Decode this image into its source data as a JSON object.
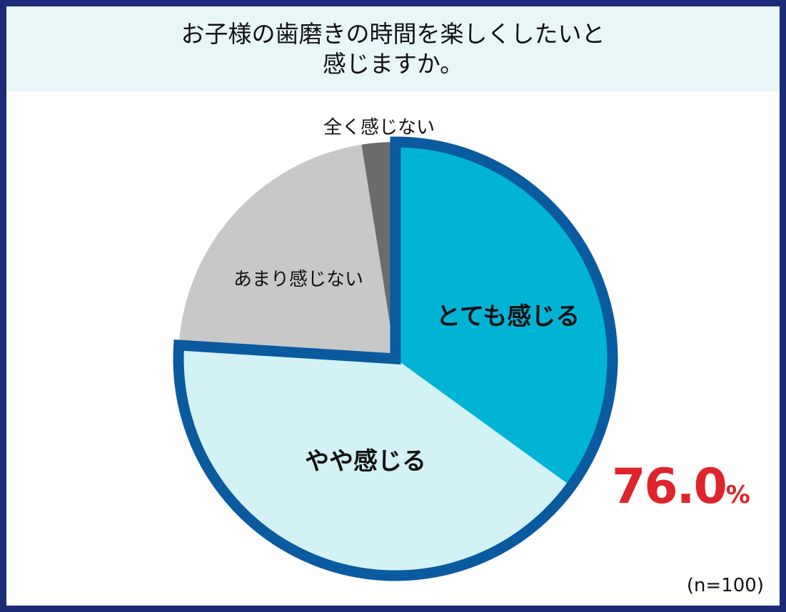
{
  "title": {
    "line1": "お子様の歯磨きの時間を楽しくしたいと",
    "line2": "感じますか。"
  },
  "chart_data": {
    "type": "pie",
    "title": "お子様の歯磨きの時間を楽しくしたいと感じますか。",
    "slices": [
      {
        "label": "とても感じる",
        "value": 35.0,
        "color": "#00b4d6",
        "highlighted": true
      },
      {
        "label": "やや感じる",
        "value": 41.0,
        "color": "#d3f2f6",
        "highlighted": true
      },
      {
        "label": "あまり感じない",
        "value": 21.5,
        "color": "#c8c8c8",
        "highlighted": false
      },
      {
        "label": "全く感じない",
        "value": 2.5,
        "color": "#6b6b6b",
        "highlighted": false
      }
    ],
    "start": "12 o'clock",
    "direction": "clockwise",
    "highlight_outline_color": "#0a5aa0",
    "highlight_total": {
      "value": "76.0",
      "unit": "%",
      "color": "#e0242c"
    },
    "sample_size": "(n=100)"
  }
}
